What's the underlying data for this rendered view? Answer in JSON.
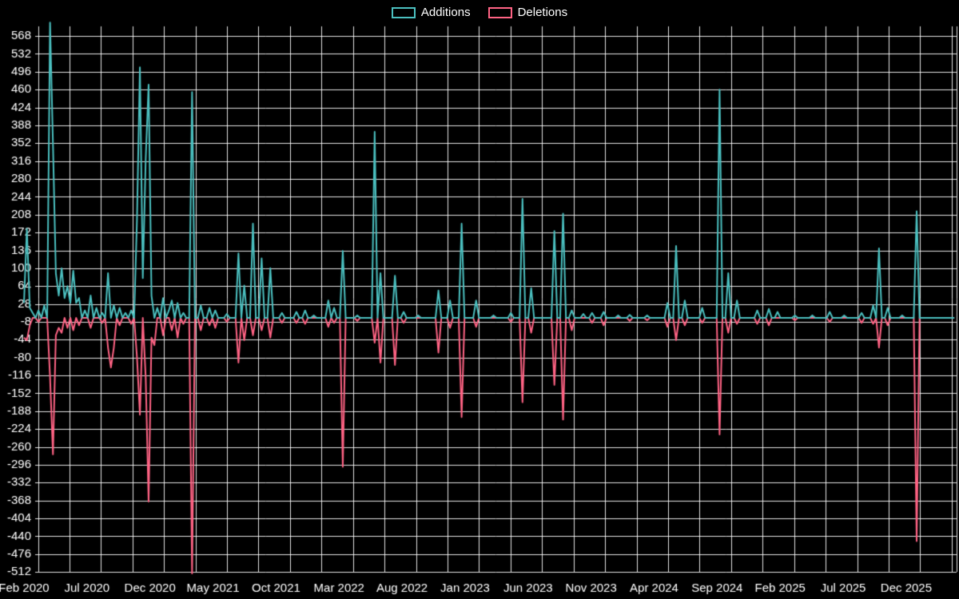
{
  "chart_data": {
    "type": "line",
    "title": "",
    "background": "#000000",
    "text_color": "#ffffff",
    "grid_color": "#ffffff",
    "legend_position": "top",
    "grid": true,
    "baseline": 0,
    "weeks_total": 321,
    "x_axis": {
      "labels": [
        "Feb 2020",
        "Jul 2020",
        "Dec 2020",
        "May 2021",
        "Oct 2021",
        "Mar 2022",
        "Aug 2022",
        "Jan 2023",
        "Jun 2023",
        "Nov 2023",
        "Apr 2024",
        "Sep 2024",
        "Feb 2025",
        "Jul 2025",
        "Dec 2025"
      ],
      "label_interval_months": 5
    },
    "y_axis": {
      "min": -512,
      "max": 568,
      "step": 36,
      "ticks": [
        568,
        532,
        496,
        460,
        424,
        388,
        352,
        316,
        280,
        244,
        208,
        172,
        136,
        100,
        64,
        28,
        -8,
        -44,
        -80,
        -116,
        -152,
        -188,
        -224,
        -260,
        -296,
        -332,
        -368,
        -404,
        -440,
        -476,
        -512
      ]
    },
    "series": [
      {
        "name": "Additions",
        "color": "#4bc0c0",
        "points": [
          [
            0,
            30
          ],
          [
            1,
            180
          ],
          [
            2,
            20
          ],
          [
            3,
            10
          ],
          [
            5,
            15
          ],
          [
            7,
            25
          ],
          [
            9,
            595
          ],
          [
            10,
            350
          ],
          [
            11,
            90
          ],
          [
            12,
            45
          ],
          [
            13,
            100
          ],
          [
            14,
            40
          ],
          [
            15,
            64
          ],
          [
            16,
            30
          ],
          [
            17,
            95
          ],
          [
            18,
            30
          ],
          [
            19,
            40
          ],
          [
            21,
            15
          ],
          [
            23,
            45
          ],
          [
            25,
            20
          ],
          [
            27,
            10
          ],
          [
            29,
            90
          ],
          [
            31,
            25
          ],
          [
            33,
            20
          ],
          [
            35,
            10
          ],
          [
            37,
            15
          ],
          [
            39,
            200
          ],
          [
            40,
            505
          ],
          [
            41,
            80
          ],
          [
            42,
            320
          ],
          [
            43,
            470
          ],
          [
            44,
            45
          ],
          [
            46,
            20
          ],
          [
            48,
            40
          ],
          [
            50,
            15
          ],
          [
            51,
            35
          ],
          [
            53,
            30
          ],
          [
            55,
            10
          ],
          [
            58,
            455
          ],
          [
            61,
            25
          ],
          [
            64,
            20
          ],
          [
            66,
            15
          ],
          [
            70,
            8
          ],
          [
            74,
            130
          ],
          [
            76,
            65
          ],
          [
            79,
            190
          ],
          [
            82,
            120
          ],
          [
            85,
            100
          ],
          [
            89,
            10
          ],
          [
            94,
            12
          ],
          [
            97,
            15
          ],
          [
            100,
            5
          ],
          [
            105,
            35
          ],
          [
            107,
            20
          ],
          [
            110,
            135
          ],
          [
            115,
            5
          ],
          [
            121,
            375
          ],
          [
            123,
            90
          ],
          [
            128,
            85
          ],
          [
            131,
            12
          ],
          [
            136,
            5
          ],
          [
            143,
            55
          ],
          [
            147,
            35
          ],
          [
            151,
            190
          ],
          [
            156,
            35
          ],
          [
            162,
            5
          ],
          [
            168,
            10
          ],
          [
            172,
            240
          ],
          [
            175,
            60
          ],
          [
            183,
            175
          ],
          [
            186,
            210
          ],
          [
            189,
            15
          ],
          [
            193,
            8
          ],
          [
            196,
            10
          ],
          [
            200,
            12
          ],
          [
            205,
            5
          ],
          [
            209,
            6
          ],
          [
            215,
            5
          ],
          [
            222,
            30
          ],
          [
            225,
            145
          ],
          [
            228,
            35
          ],
          [
            234,
            20
          ],
          [
            240,
            460
          ],
          [
            243,
            90
          ],
          [
            246,
            35
          ],
          [
            253,
            15
          ],
          [
            257,
            18
          ],
          [
            260,
            12
          ],
          [
            266,
            5
          ],
          [
            272,
            5
          ],
          [
            278,
            12
          ],
          [
            283,
            5
          ],
          [
            289,
            10
          ],
          [
            293,
            25
          ],
          [
            295,
            140
          ],
          [
            298,
            20
          ],
          [
            303,
            5
          ],
          [
            308,
            215
          ]
        ]
      },
      {
        "name": "Deletions",
        "color": "#ff6384",
        "points": [
          [
            0,
            -40
          ],
          [
            1,
            -45
          ],
          [
            2,
            -15
          ],
          [
            5,
            -8
          ],
          [
            9,
            -120
          ],
          [
            10,
            -275
          ],
          [
            11,
            -35
          ],
          [
            12,
            -20
          ],
          [
            13,
            -30
          ],
          [
            15,
            -20
          ],
          [
            17,
            -25
          ],
          [
            19,
            -15
          ],
          [
            23,
            -20
          ],
          [
            27,
            -10
          ],
          [
            29,
            -60
          ],
          [
            30,
            -100
          ],
          [
            31,
            -60
          ],
          [
            33,
            -15
          ],
          [
            37,
            -12
          ],
          [
            39,
            -80
          ],
          [
            40,
            -195
          ],
          [
            42,
            -120
          ],
          [
            43,
            -370
          ],
          [
            44,
            -40
          ],
          [
            45,
            -55
          ],
          [
            48,
            -35
          ],
          [
            51,
            -25
          ],
          [
            53,
            -40
          ],
          [
            55,
            -12
          ],
          [
            58,
            -515
          ],
          [
            61,
            -25
          ],
          [
            64,
            -15
          ],
          [
            66,
            -20
          ],
          [
            70,
            -8
          ],
          [
            74,
            -90
          ],
          [
            76,
            -45
          ],
          [
            79,
            -35
          ],
          [
            82,
            -25
          ],
          [
            85,
            -40
          ],
          [
            89,
            -10
          ],
          [
            94,
            -10
          ],
          [
            97,
            -12
          ],
          [
            105,
            -18
          ],
          [
            107,
            -10
          ],
          [
            110,
            -300
          ],
          [
            115,
            -6
          ],
          [
            121,
            -50
          ],
          [
            123,
            -90
          ],
          [
            128,
            -95
          ],
          [
            131,
            -10
          ],
          [
            143,
            -70
          ],
          [
            147,
            -20
          ],
          [
            151,
            -200
          ],
          [
            156,
            -18
          ],
          [
            168,
            -8
          ],
          [
            172,
            -170
          ],
          [
            175,
            -30
          ],
          [
            183,
            -135
          ],
          [
            186,
            -205
          ],
          [
            189,
            -25
          ],
          [
            196,
            -10
          ],
          [
            200,
            -15
          ],
          [
            209,
            -6
          ],
          [
            215,
            -5
          ],
          [
            222,
            -18
          ],
          [
            225,
            -45
          ],
          [
            228,
            -15
          ],
          [
            234,
            -10
          ],
          [
            240,
            -235
          ],
          [
            243,
            -30
          ],
          [
            246,
            -12
          ],
          [
            253,
            -12
          ],
          [
            257,
            -15
          ],
          [
            266,
            -5
          ],
          [
            278,
            -8
          ],
          [
            289,
            -10
          ],
          [
            293,
            -12
          ],
          [
            295,
            -60
          ],
          [
            298,
            -15
          ],
          [
            308,
            -450
          ]
        ]
      }
    ]
  }
}
